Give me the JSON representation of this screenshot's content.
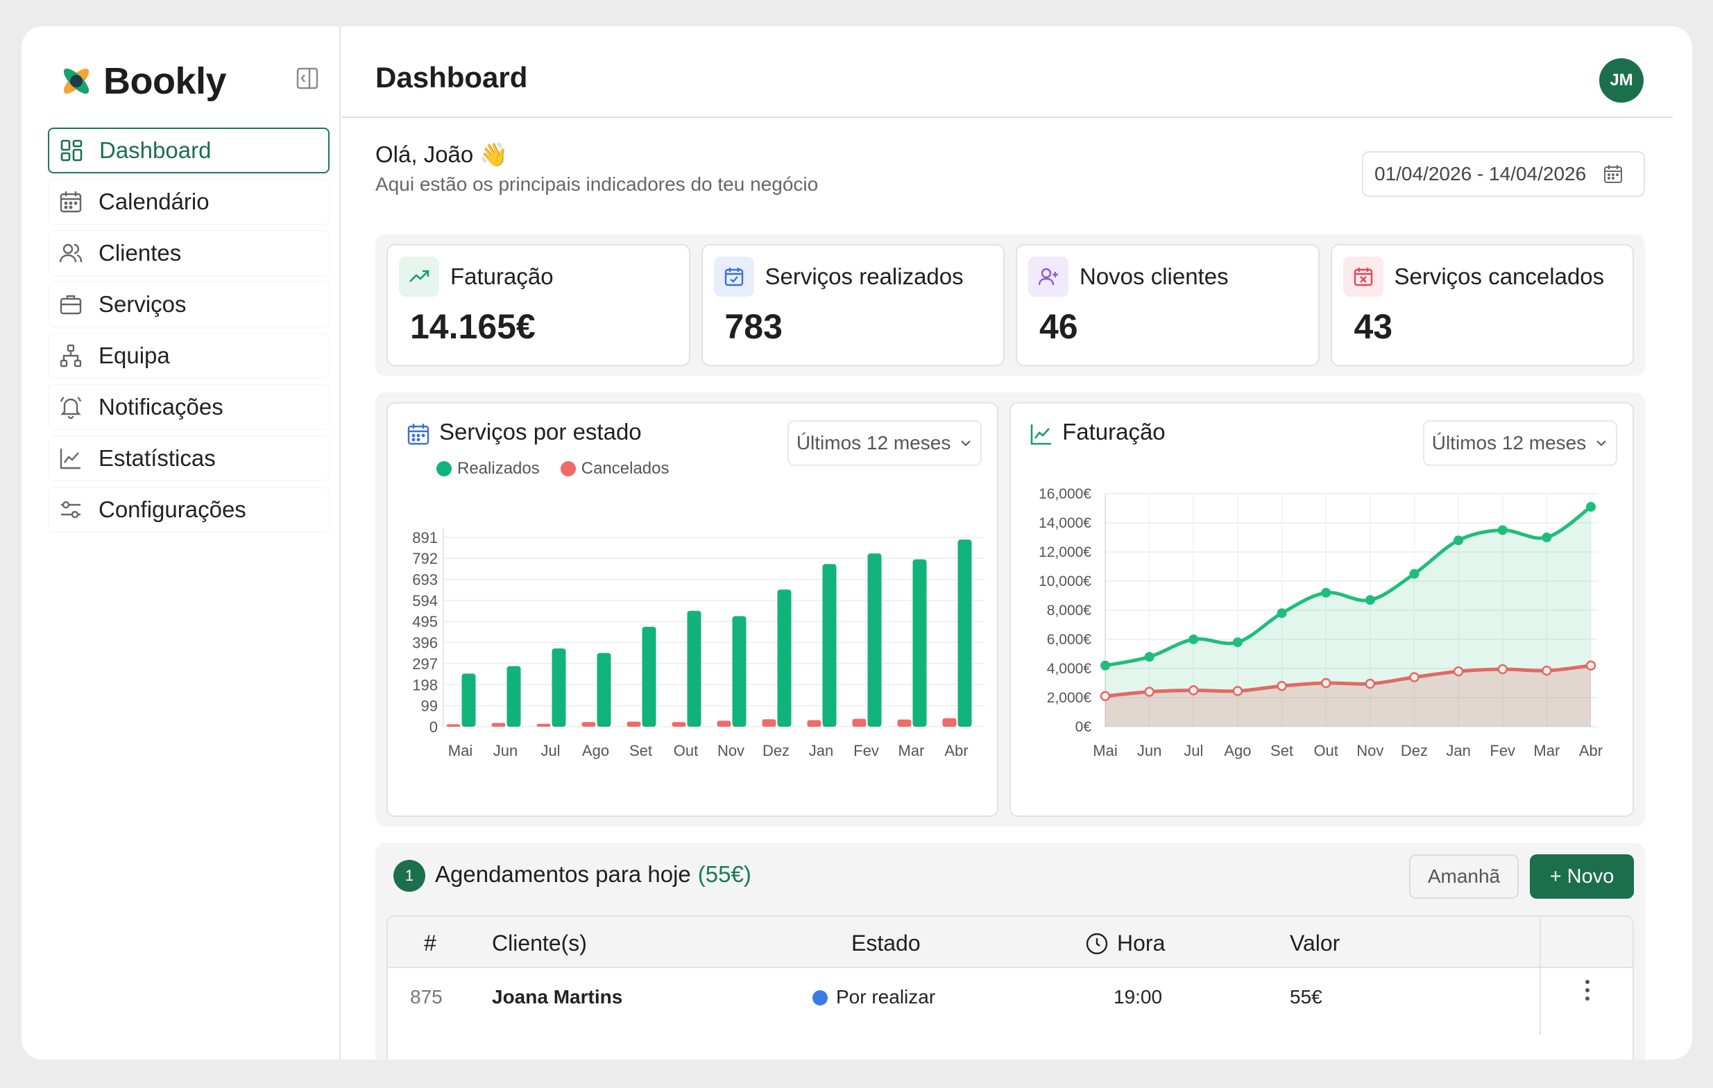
{
  "app": {
    "name": "Bookly"
  },
  "sidebar": {
    "items": [
      {
        "label": "Dashboard",
        "icon": "dashboard-icon",
        "active": true
      },
      {
        "label": "Calendário",
        "icon": "calendar-icon"
      },
      {
        "label": "Clientes",
        "icon": "users-icon"
      },
      {
        "label": "Serviços",
        "icon": "briefcase-icon"
      },
      {
        "label": "Equipa",
        "icon": "team-icon"
      },
      {
        "label": "Notificações",
        "icon": "bell-icon"
      },
      {
        "label": "Estatísticas",
        "icon": "chart-icon"
      },
      {
        "label": "Configurações",
        "icon": "sliders-icon"
      }
    ]
  },
  "header": {
    "title": "Dashboard",
    "avatar_initials": "JM"
  },
  "greeting": {
    "title": "Olá, João 👋",
    "subtitle": "Aqui estão os principais indicadores do teu negócio"
  },
  "date_range": "01/04/2026 - 14/04/2026",
  "kpis": [
    {
      "label": "Faturação",
      "value": "14.165€",
      "icon": "trend-up-icon",
      "color": "#1b9a6b",
      "bg": "#e6f5ee"
    },
    {
      "label": "Serviços realizados",
      "value": "783",
      "icon": "calendar-check-icon",
      "color": "#3a6fd8",
      "bg": "#e8effc"
    },
    {
      "label": "Novos clientes",
      "value": "46",
      "icon": "user-plus-icon",
      "color": "#8a5bd6",
      "bg": "#f1eafb"
    },
    {
      "label": "Serviços cancelados",
      "value": "43",
      "icon": "calendar-x-icon",
      "color": "#e0475c",
      "bg": "#fdeaec"
    }
  ],
  "services_card": {
    "title": "Serviços por estado",
    "range_select": "Últimos 12 meses",
    "legend": [
      "Realizados",
      "Cancelados"
    ]
  },
  "revenue_card": {
    "title": "Faturação",
    "range_select": "Últimos 12 meses"
  },
  "chart_data": [
    {
      "type": "bar",
      "categories": [
        "Mai",
        "Jun",
        "Jul",
        "Ago",
        "Set",
        "Out",
        "Nov",
        "Dez",
        "Jan",
        "Fev",
        "Mar",
        "Abr"
      ],
      "series": [
        {
          "name": "Realizados",
          "color": "#12b37a",
          "values": [
            250,
            285,
            368,
            347,
            470,
            545,
            520,
            645,
            765,
            815,
            787,
            880
          ]
        },
        {
          "name": "Cancelados",
          "color": "#f06a6a",
          "values": [
            12,
            18,
            14,
            22,
            24,
            22,
            28,
            35,
            31,
            37,
            34,
            40
          ]
        }
      ],
      "yticks": [
        0,
        99,
        198,
        297,
        396,
        495,
        594,
        693,
        792,
        891
      ],
      "ylim": [
        0,
        900
      ],
      "legend": "top-left",
      "grid": true
    },
    {
      "type": "area",
      "categories": [
        "Mai",
        "Jun",
        "Jul",
        "Ago",
        "Set",
        "Out",
        "Nov",
        "Dez",
        "Jan",
        "Fev",
        "Mar",
        "Abr"
      ],
      "series": [
        {
          "color": "#1fbd7c",
          "values": [
            4200,
            4800,
            6000,
            5800,
            7800,
            9200,
            8700,
            10500,
            12800,
            13500,
            13000,
            15100
          ]
        },
        {
          "color": "#e06a64",
          "values": [
            2100,
            2400,
            2500,
            2450,
            2800,
            3000,
            2950,
            3400,
            3800,
            3950,
            3850,
            4200
          ]
        }
      ],
      "yticks": [
        "0€",
        "2,000€",
        "4,000€",
        "6,000€",
        "8,000€",
        "10,000€",
        "12,000€",
        "14,000€",
        "16,000€"
      ],
      "ylim": [
        0,
        16000
      ],
      "grid": true
    }
  ],
  "appointments": {
    "count": "1",
    "title": "Agendamentos para hoje",
    "total": "(55€)",
    "tomorrow_label": "Amanhã",
    "new_label": "+ Novo",
    "columns": [
      "#",
      "Cliente(s)",
      "Estado",
      "Hora",
      "Valor"
    ],
    "rows": [
      {
        "id": "875",
        "client": "Joana Martins",
        "status": "Por realizar",
        "time": "19:00",
        "value": "55€"
      }
    ]
  }
}
